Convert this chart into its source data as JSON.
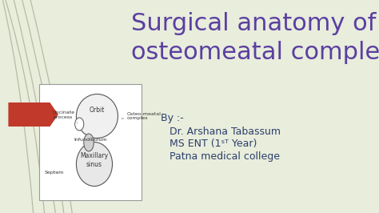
{
  "title_line1": "Surgical anatomy of",
  "title_line2": "osteomeatal complex",
  "title_color": "#5b3fa0",
  "title_fontsize": 22,
  "bg_color": "#e8eddc",
  "by_text": "By :-",
  "author_line1": "Dr. Arshana Tabassum",
  "author_line2": "MS ENT (1ˢᵀ Year)",
  "author_line3": "Patna medical college",
  "author_color": "#2c3e6b",
  "author_fontsize": 9,
  "red_arrow_color": "#c0392b",
  "decorative_line_color": "#8a8a6a",
  "image_box_color": "#ffffff",
  "image_border_color": "#aaaaaa"
}
